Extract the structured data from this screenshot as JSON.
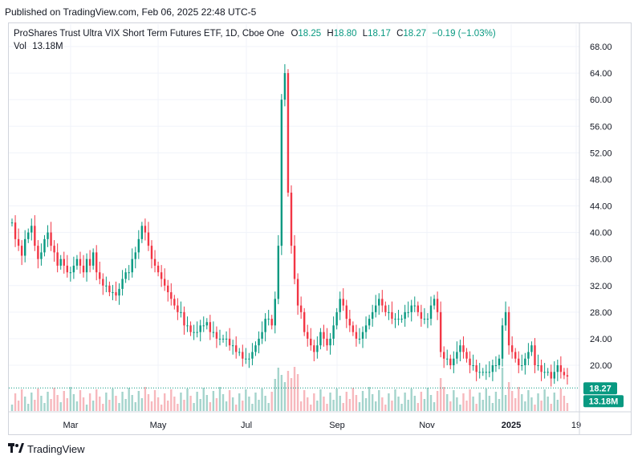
{
  "header": {
    "published": "Published on TradingView.com, Feb 06, 2025 22:48 UTC-5"
  },
  "legend": {
    "title": "ProShares Trust Ultra VIX Short Term Futures ETF, 1D, Cboe One",
    "o_label": "O",
    "o_value": "18.25",
    "h_label": "H",
    "h_value": "18.80",
    "l_label": "L",
    "l_value": "18.17",
    "c_label": "C",
    "c_value": "18.27",
    "change": "−0.19 (−1.03%)",
    "vol_label": "Vol",
    "vol_value": "13.18M"
  },
  "footer": {
    "brand": "TradingView"
  },
  "colors": {
    "up": "#089981",
    "down": "#f23645",
    "vol_up": "#a4d4cc",
    "vol_down": "#f7b8bd",
    "grid": "#f0f3fa",
    "last_price_line": "#089981"
  },
  "chart_data": {
    "type": "candlestick",
    "ylim": [
      16,
      70
    ],
    "y_ticks": [
      "68.00",
      "64.00",
      "60.00",
      "56.00",
      "52.00",
      "48.00",
      "44.00",
      "40.00",
      "36.00",
      "32.00",
      "28.00",
      "24.00",
      "20.00"
    ],
    "x_ticks": [
      "Mar",
      "May",
      "Jul",
      "Sep",
      "Nov",
      "2025",
      "19"
    ],
    "last_price": "18.27",
    "last_volume": "13.18M",
    "grid": true,
    "series_close_approx": [
      [
        0,
        41.5
      ],
      [
        4,
        39
      ],
      [
        8,
        38
      ],
      [
        12,
        36.5
      ],
      [
        16,
        39
      ],
      [
        20,
        40
      ],
      [
        24,
        41
      ],
      [
        28,
        38
      ],
      [
        32,
        36
      ],
      [
        36,
        37
      ],
      [
        40,
        39
      ],
      [
        44,
        40
      ],
      [
        48,
        38
      ],
      [
        52,
        37
      ],
      [
        56,
        35
      ],
      [
        60,
        36
      ],
      [
        64,
        35
      ],
      [
        68,
        34
      ],
      [
        72,
        34
      ],
      [
        76,
        35
      ],
      [
        80,
        36
      ],
      [
        84,
        35
      ],
      [
        88,
        34
      ],
      [
        92,
        36
      ],
      [
        96,
        35
      ],
      [
        100,
        37
      ],
      [
        104,
        34
      ],
      [
        108,
        33
      ],
      [
        112,
        32
      ],
      [
        116,
        32
      ],
      [
        120,
        31
      ],
      [
        124,
        31
      ],
      [
        128,
        30.5
      ],
      [
        132,
        31.5
      ],
      [
        136,
        33
      ],
      [
        140,
        34
      ],
      [
        144,
        34
      ],
      [
        148,
        36
      ],
      [
        152,
        37
      ],
      [
        156,
        39
      ],
      [
        160,
        41
      ],
      [
        164,
        40
      ],
      [
        168,
        38
      ],
      [
        172,
        36
      ],
      [
        176,
        35
      ],
      [
        180,
        34
      ],
      [
        184,
        33
      ],
      [
        188,
        32
      ],
      [
        192,
        31
      ],
      [
        196,
        30
      ],
      [
        200,
        29
      ],
      [
        204,
        28
      ],
      [
        208,
        28
      ],
      [
        212,
        26
      ],
      [
        216,
        26
      ],
      [
        220,
        25
      ],
      [
        224,
        25
      ],
      [
        228,
        25
      ],
      [
        232,
        26
      ],
      [
        236,
        26
      ],
      [
        240,
        26.5
      ],
      [
        244,
        25
      ],
      [
        248,
        25
      ],
      [
        252,
        24
      ],
      [
        256,
        24
      ],
      [
        260,
        24
      ],
      [
        264,
        24
      ],
      [
        268,
        23
      ],
      [
        272,
        23
      ],
      [
        276,
        22
      ],
      [
        280,
        22
      ],
      [
        284,
        21
      ],
      [
        288,
        21
      ],
      [
        292,
        21
      ],
      [
        296,
        22
      ],
      [
        300,
        23
      ],
      [
        304,
        24
      ],
      [
        308,
        25
      ],
      [
        312,
        27
      ],
      [
        316,
        27
      ],
      [
        320,
        26
      ],
      [
        324,
        30
      ],
      [
        328,
        38
      ],
      [
        332,
        60
      ],
      [
        336,
        64
      ],
      [
        340,
        46
      ],
      [
        344,
        38
      ],
      [
        348,
        33
      ],
      [
        352,
        29
      ],
      [
        356,
        28
      ],
      [
        360,
        25
      ],
      [
        364,
        24
      ],
      [
        368,
        23
      ],
      [
        372,
        22
      ],
      [
        376,
        23
      ],
      [
        380,
        25
      ],
      [
        384,
        24
      ],
      [
        388,
        23
      ],
      [
        392,
        24
      ],
      [
        396,
        26
      ],
      [
        400,
        28
      ],
      [
        404,
        30
      ],
      [
        408,
        29
      ],
      [
        412,
        27
      ],
      [
        416,
        26
      ],
      [
        420,
        25
      ],
      [
        424,
        24
      ],
      [
        428,
        24
      ],
      [
        432,
        25
      ],
      [
        436,
        26
      ],
      [
        440,
        27
      ],
      [
        444,
        28
      ],
      [
        448,
        29
      ],
      [
        452,
        30
      ],
      [
        456,
        29
      ],
      [
        460,
        28
      ],
      [
        464,
        28
      ],
      [
        468,
        27
      ],
      [
        472,
        27
      ],
      [
        476,
        27
      ],
      [
        480,
        27
      ],
      [
        484,
        28
      ],
      [
        488,
        28
      ],
      [
        492,
        29
      ],
      [
        496,
        29
      ],
      [
        500,
        28
      ],
      [
        504,
        27
      ],
      [
        508,
        27
      ],
      [
        512,
        27
      ],
      [
        516,
        29
      ],
      [
        520,
        30
      ],
      [
        524,
        28
      ],
      [
        528,
        22
      ],
      [
        532,
        21
      ],
      [
        536,
        21
      ],
      [
        540,
        20
      ],
      [
        544,
        21
      ],
      [
        548,
        22
      ],
      [
        552,
        23
      ],
      [
        556,
        22
      ],
      [
        560,
        21
      ],
      [
        564,
        20
      ],
      [
        568,
        20
      ],
      [
        572,
        19
      ],
      [
        576,
        19
      ],
      [
        580,
        19
      ],
      [
        584,
        19
      ],
      [
        588,
        19
      ],
      [
        592,
        20
      ],
      [
        596,
        20
      ],
      [
        600,
        21
      ],
      [
        604,
        26
      ],
      [
        608,
        28
      ],
      [
        612,
        23
      ],
      [
        616,
        22
      ],
      [
        620,
        21
      ],
      [
        624,
        20
      ],
      [
        628,
        20
      ],
      [
        632,
        21
      ],
      [
        636,
        22
      ],
      [
        640,
        23
      ],
      [
        644,
        20
      ],
      [
        648,
        20
      ],
      [
        652,
        19
      ],
      [
        656,
        19
      ],
      [
        660,
        19
      ],
      [
        664,
        18
      ],
      [
        668,
        19
      ],
      [
        672,
        20
      ],
      [
        676,
        19
      ],
      [
        680,
        18.5
      ],
      [
        684,
        18.3
      ]
    ]
  }
}
